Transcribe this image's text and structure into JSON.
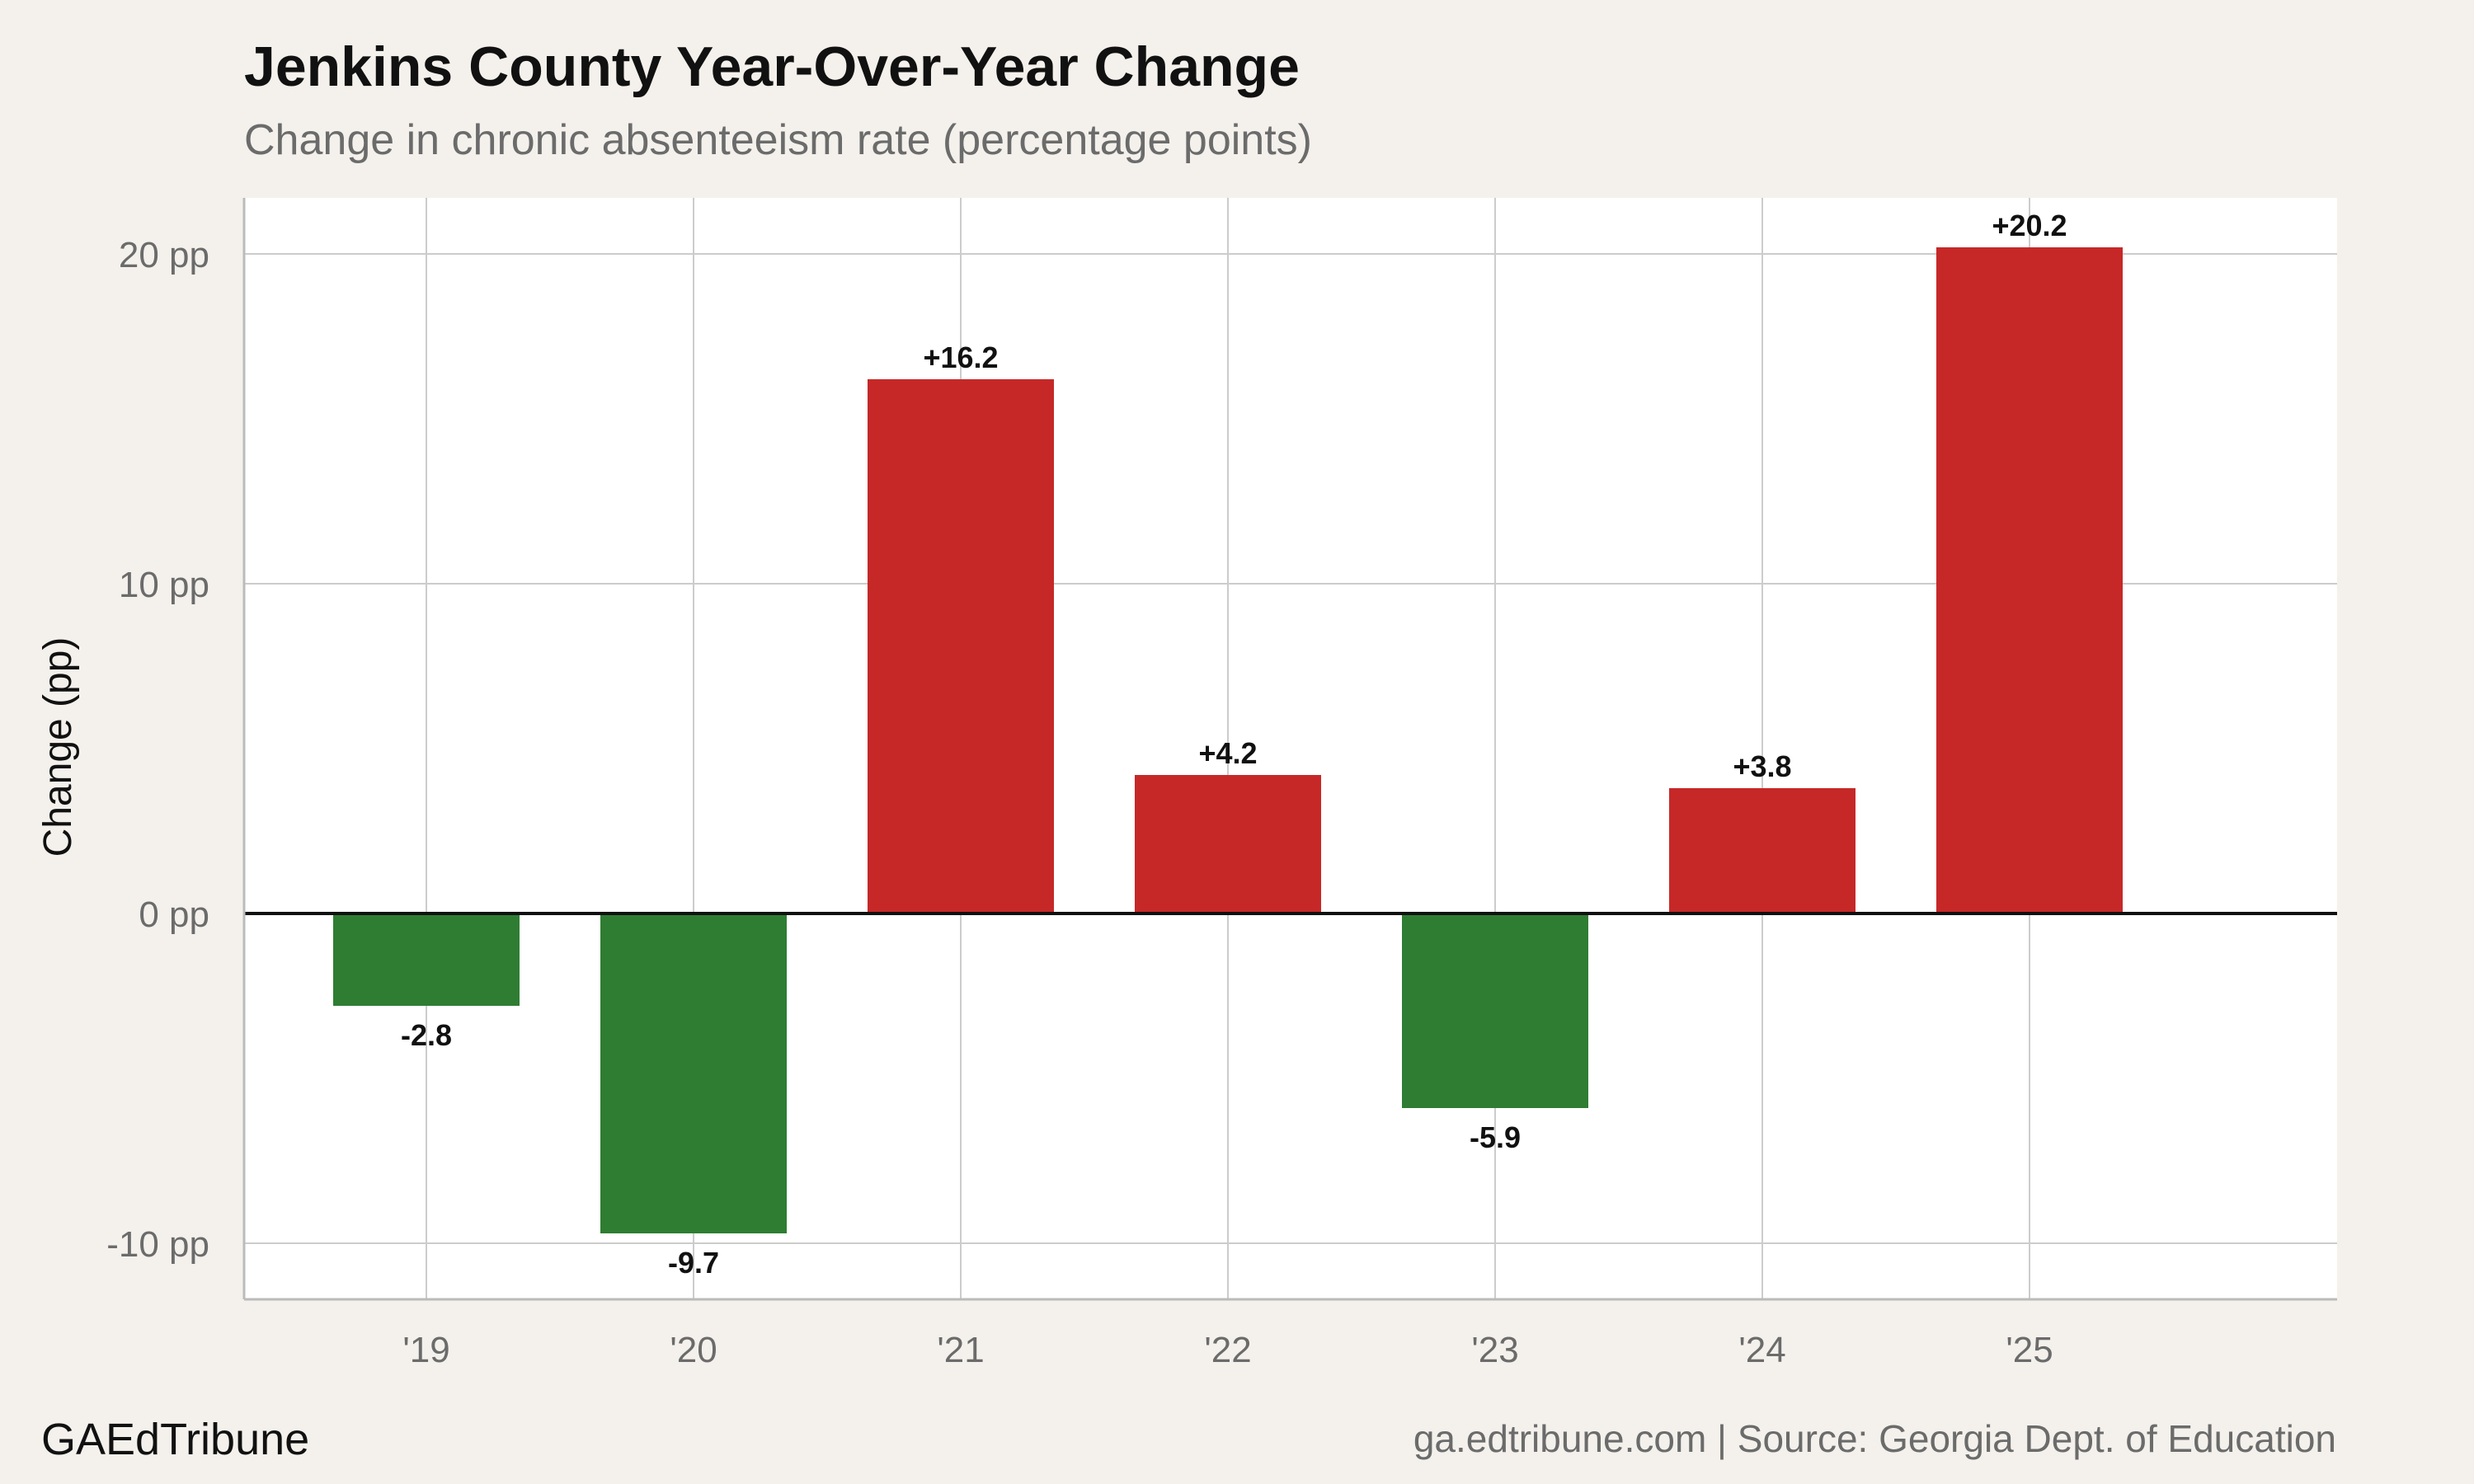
{
  "header": {
    "title": "Jenkins County Year-Over-Year Change",
    "subtitle": "Change in chronic absenteeism rate (percentage points)"
  },
  "footer": {
    "brand": "GAEdTribune",
    "source": "ga.edtribune.com | Source: Georgia Dept. of Education"
  },
  "colors": {
    "background": "#f4f1ec",
    "plot_background": "#ffffff",
    "increase": "#c62828",
    "decrease": "#2e7d32",
    "grid": "#cccccc",
    "zero_line": "#111111"
  },
  "chart_data": {
    "type": "bar",
    "title": "Jenkins County Year-Over-Year Change",
    "subtitle": "Change in chronic absenteeism rate (percentage points)",
    "xlabel": "",
    "ylabel": "Change (pp)",
    "categories": [
      "'19",
      "'20",
      "'21",
      "'22",
      "'23",
      "'24",
      "'25"
    ],
    "values": [
      -2.8,
      -9.7,
      16.2,
      4.2,
      -5.9,
      3.8,
      20.2
    ],
    "data_labels": [
      "-2.8",
      "-9.7",
      "+16.2",
      "+4.2",
      "-5.9",
      "+3.8",
      "+20.2"
    ],
    "yticks": [
      -10,
      0,
      10,
      20
    ],
    "ytick_labels": [
      "-10 pp",
      "0 pp",
      "10 pp",
      "20 pp"
    ],
    "ylim": [
      -11.7,
      21.7
    ],
    "grid": true,
    "legend": "none"
  }
}
